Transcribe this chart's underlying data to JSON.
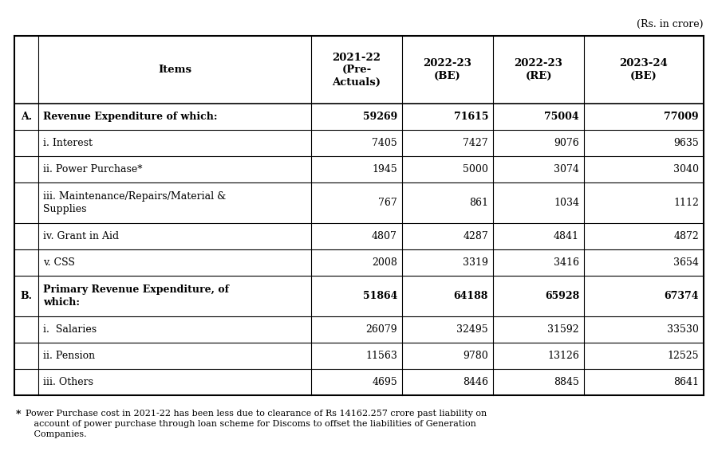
{
  "rs_label": "(Rs. in crore)",
  "col_headers": [
    "Items",
    "2021-22\n(Pre-\nActuals)",
    "2022-23\n(BE)",
    "2022-23\n(RE)",
    "2023-24\n(BE)"
  ],
  "rows": [
    {
      "label": "A.",
      "item": "Revenue Expenditure of which:",
      "values": [
        "59269",
        "71615",
        "75004",
        "77009"
      ],
      "bold": true,
      "two_line": false
    },
    {
      "label": "",
      "item": "i. Interest",
      "values": [
        "7405",
        "7427",
        "9076",
        "9635"
      ],
      "bold": false,
      "two_line": false
    },
    {
      "label": "",
      "item": "ii. Power Purchase*",
      "values": [
        "1945",
        "5000",
        "3074",
        "3040"
      ],
      "bold": false,
      "two_line": false
    },
    {
      "label": "",
      "item": "iii. Maintenance/Repairs/Material &\nSupplies",
      "values": [
        "767",
        "861",
        "1034",
        "1112"
      ],
      "bold": false,
      "two_line": true
    },
    {
      "label": "",
      "item": "iv. Grant in Aid",
      "values": [
        "4807",
        "4287",
        "4841",
        "4872"
      ],
      "bold": false,
      "two_line": false
    },
    {
      "label": "",
      "item": "v. CSS",
      "values": [
        "2008",
        "3319",
        "3416",
        "3654"
      ],
      "bold": false,
      "two_line": false
    },
    {
      "label": "B.",
      "item": "Primary Revenue Expenditure, of\nwhich:",
      "values": [
        "51864",
        "64188",
        "65928",
        "67374"
      ],
      "bold": true,
      "two_line": true
    },
    {
      "label": "",
      "item": "i.  Salaries",
      "values": [
        "26079",
        "32495",
        "31592",
        "33530"
      ],
      "bold": false,
      "two_line": false
    },
    {
      "label": "",
      "item": "ii. Pension",
      "values": [
        "11563",
        "9780",
        "13126",
        "12525"
      ],
      "bold": false,
      "two_line": false
    },
    {
      "label": "",
      "item": "iii. Others",
      "values": [
        "4695",
        "8446",
        "8845",
        "8641"
      ],
      "bold": false,
      "two_line": false
    }
  ],
  "footnote_bullet": "*",
  "footnote_text": "Power Purchase cost in 2021-22 has been less due to clearance of Rs 14162.257 crore past liability on\n   account of power purchase through loan scheme for Discoms to offset the liabilities of Generation\n   Companies.",
  "bg_color": "#ffffff",
  "border_color": "#000000",
  "text_color": "#000000",
  "font_size": 9.0,
  "header_font_size": 9.5,
  "footnote_font_size": 8.0
}
